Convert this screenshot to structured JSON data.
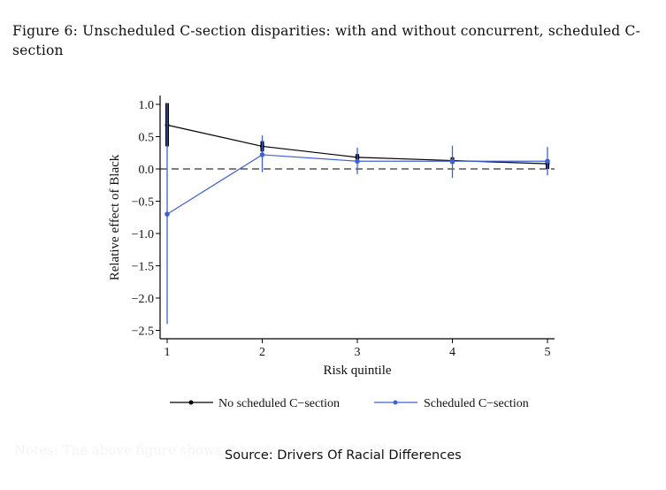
{
  "caption": "Figure 6:  Unscheduled C-section disparities:  with and without concurrent, scheduled C-section",
  "faint_note": "Notes: The above figure shows the relative effect for Black...",
  "source": "Source: Drivers Of Racial Differences",
  "colors": {
    "series_black": "#000000",
    "series_blue": "#4060d8",
    "reference_line": "#000000"
  },
  "chart_data": {
    "type": "line",
    "title": "",
    "xlabel": "Risk quintile",
    "ylabel": "Relative effect of Black",
    "x": [
      1,
      2,
      3,
      4,
      5
    ],
    "x_ticks": [
      "1",
      "2",
      "3",
      "4",
      "5"
    ],
    "y_ticks": [
      "1.0",
      "0.5",
      "0.0",
      "−0.5",
      "−1.0",
      "−1.5",
      "−2.0",
      "−2.5"
    ],
    "y_tick_values": [
      1.0,
      0.5,
      0.0,
      -0.5,
      -1.0,
      -1.5,
      -2.0,
      -2.5
    ],
    "ylim": [
      -2.6,
      1.1
    ],
    "xlim": [
      0.9,
      5.1
    ],
    "reference_line": {
      "y": 0,
      "style": "dashed"
    },
    "grid": false,
    "legend": {
      "placement": "bottom"
    },
    "series": [
      {
        "name": "No scheduled C−section",
        "color": "#000000",
        "values": [
          0.68,
          0.35,
          0.18,
          0.13,
          0.08
        ],
        "ci_low": [
          0.35,
          0.27,
          0.13,
          0.08,
          0.0
        ],
        "ci_high": [
          1.02,
          0.43,
          0.23,
          0.18,
          0.15
        ]
      },
      {
        "name": "Scheduled C−section",
        "color": "#4060d8",
        "values": [
          -0.7,
          0.22,
          0.12,
          0.12,
          0.12
        ],
        "ci_low": [
          -2.4,
          -0.05,
          -0.08,
          -0.14,
          -0.1
        ],
        "ci_high": [
          1.02,
          0.52,
          0.33,
          0.36,
          0.34
        ]
      }
    ]
  }
}
